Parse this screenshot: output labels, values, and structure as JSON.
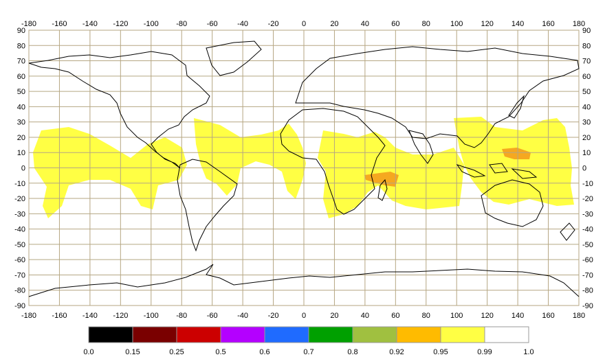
{
  "colors": {
    "background": "#ffffff",
    "grid": "#b5a682",
    "coastline": "#000000",
    "high_value": "#ffff44",
    "very_high_value": "#f5a820"
  },
  "lon_ticks": [
    "-180",
    "-160",
    "-140",
    "-120",
    "-100",
    "-80",
    "-60",
    "-40",
    "-20",
    "0",
    "20",
    "40",
    "60",
    "80",
    "100",
    "120",
    "140",
    "160",
    "180"
  ],
  "lat_ticks": [
    "90",
    "80",
    "70",
    "60",
    "50",
    "40",
    "30",
    "20",
    "10",
    "0",
    "-10",
    "-20",
    "-30",
    "-40",
    "-50",
    "-60",
    "-70",
    "-80",
    "-90"
  ],
  "legend": {
    "bins": [
      {
        "from": "0.0",
        "color": "#000000"
      },
      {
        "from": "0.15",
        "color": "#7a0000"
      },
      {
        "from": "0.25",
        "color": "#cc0000"
      },
      {
        "from": "0.5",
        "color": "#b400ff"
      },
      {
        "from": "0.6",
        "color": "#1f6bff"
      },
      {
        "from": "0.7",
        "color": "#00a000"
      },
      {
        "from": "0.8",
        "color": "#a0c040"
      },
      {
        "from": "0.92",
        "color": "#ffbb00"
      },
      {
        "from": "0.95",
        "color": "#ffff44"
      },
      {
        "from": "0.99",
        "color": "#ffffff"
      }
    ],
    "end_label": "1.0"
  }
}
